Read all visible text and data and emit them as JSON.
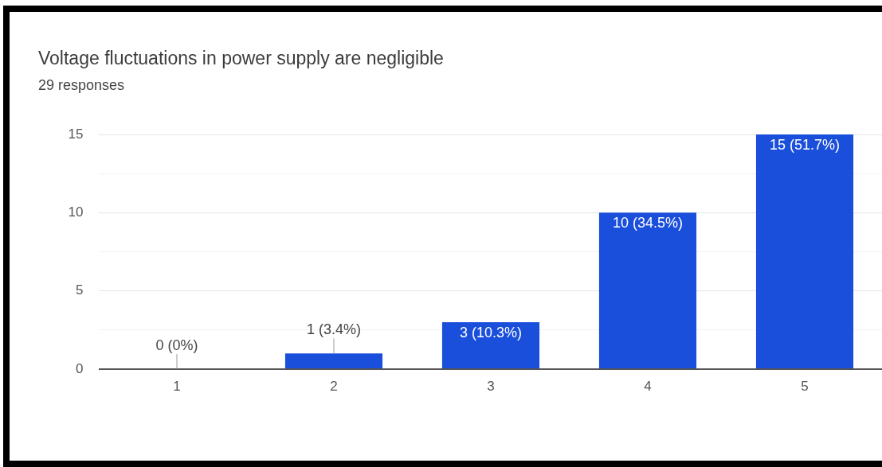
{
  "chart_data": {
    "type": "bar",
    "title": "Voltage fluctuations in power supply are negligible",
    "subtitle": "29 responses",
    "categories": [
      "1",
      "2",
      "3",
      "4",
      "5"
    ],
    "values": [
      0,
      1,
      3,
      10,
      15
    ],
    "color": "#1a4fdb",
    "value_labels": [
      "0 (0%)",
      "1 (3.4%)",
      "3 (10.3%)",
      "10 (34.5%)",
      "15 (51.7%)"
    ],
    "ylim": [
      0,
      15
    ],
    "yticks": [
      0,
      {
        "value": 2.5,
        "label": null
      },
      5,
      {
        "value": 7.5,
        "label": null
      },
      10,
      {
        "value": 12.5,
        "label": null
      },
      15
    ],
    "grid": "y"
  }
}
